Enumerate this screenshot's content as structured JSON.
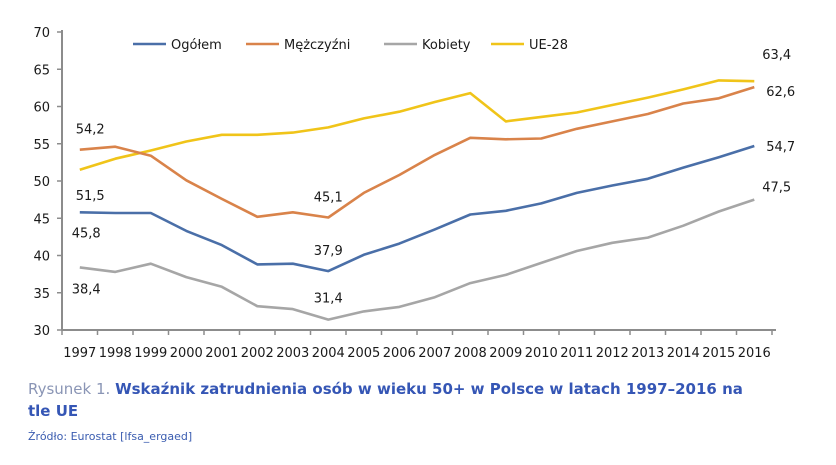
{
  "caption": {
    "prefix": "Rysunek 1. ",
    "title": "Wskaźnik zatrudnienia osób w wieku 50+ w Polsce w latach 1997–2016 na tle UE",
    "source": "Źródło: Eurostat [lfsa_ergaed]"
  },
  "chart_data": {
    "type": "line",
    "title": "Wskaźnik zatrudnienia osób w wieku 50+ w Polsce w latach 1997–2016 na tle UE",
    "xlabel": "",
    "ylabel": "",
    "ylim": [
      30,
      70
    ],
    "yticks": [
      30,
      35,
      40,
      45,
      50,
      55,
      60,
      65,
      70
    ],
    "grid": false,
    "legend_position": "top",
    "categories": [
      "1997",
      "1998",
      "1999",
      "2000",
      "2001",
      "2002",
      "2003",
      "2004",
      "2005",
      "2006",
      "2007",
      "2008",
      "2009",
      "2010",
      "2011",
      "2012",
      "2013",
      "2014",
      "2015",
      "2016"
    ],
    "series": [
      {
        "name": "Ogółem",
        "color": "#4a6fa8",
        "values": [
          45.8,
          45.7,
          45.7,
          43.3,
          41.4,
          38.8,
          38.9,
          37.9,
          40.1,
          41.6,
          43.5,
          45.5,
          46.0,
          47.0,
          48.4,
          49.4,
          50.3,
          51.8,
          53.2,
          54.7
        ]
      },
      {
        "name": "Mężczyźni",
        "color": "#d9834a",
        "values": [
          54.2,
          54.6,
          53.4,
          50.1,
          47.6,
          45.2,
          45.8,
          45.1,
          48.4,
          50.8,
          53.5,
          55.8,
          55.6,
          55.7,
          57.0,
          58.0,
          59.0,
          60.4,
          61.1,
          62.6
        ]
      },
      {
        "name": "Kobiety",
        "color": "#a6a6a6",
        "values": [
          38.4,
          37.8,
          38.9,
          37.1,
          35.8,
          33.2,
          32.8,
          31.4,
          32.5,
          33.1,
          34.4,
          36.3,
          37.4,
          39.0,
          40.6,
          41.7,
          42.4,
          44.0,
          45.9,
          47.5
        ]
      },
      {
        "name": "UE-28",
        "color": "#f0c419",
        "values": [
          51.5,
          53.0,
          54.1,
          55.3,
          56.2,
          56.2,
          56.5,
          57.2,
          58.4,
          59.3,
          60.6,
          61.8,
          58.0,
          58.6,
          59.2,
          60.2,
          61.2,
          62.3,
          63.5,
          63.4
        ]
      }
    ],
    "annotations": [
      {
        "series": "Mężczyźni",
        "year": "1997",
        "text": "54,2"
      },
      {
        "series": "UE-28",
        "year": "1997",
        "text": "51,5"
      },
      {
        "series": "Ogółem",
        "year": "1997",
        "text": "45,8"
      },
      {
        "series": "Kobiety",
        "year": "1997",
        "text": "38,4"
      },
      {
        "series": "Mężczyźni",
        "year": "2004",
        "text": "45,1"
      },
      {
        "series": "Ogółem",
        "year": "2004",
        "text": "37,9"
      },
      {
        "series": "Kobiety",
        "year": "2004",
        "text": "31,4"
      },
      {
        "series": "UE-28",
        "year": "2016",
        "text": "63,4"
      },
      {
        "series": "Mężczyźni",
        "year": "2016",
        "text": "62,6"
      },
      {
        "series": "Ogółem",
        "year": "2016",
        "text": "54,7"
      },
      {
        "series": "Kobiety",
        "year": "2016",
        "text": "47,5"
      }
    ]
  }
}
